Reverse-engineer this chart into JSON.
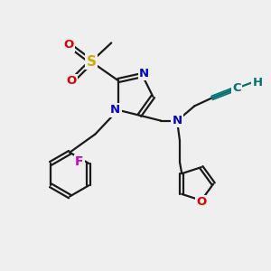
{
  "bg_color": "#efefef",
  "bond_color": "#1a1a1a",
  "bond_width": 1.6,
  "atom_colors": {
    "N": "#0000cc",
    "O": "#dd0000",
    "S": "#ccaa00",
    "F": "#cc00cc",
    "C_alkyne": "#007070",
    "H_alkyne": "#007070"
  },
  "font_size_atoms": 9.5,
  "font_size_small": 8.5
}
